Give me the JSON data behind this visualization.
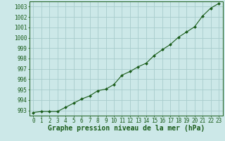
{
  "x": [
    0,
    1,
    2,
    3,
    4,
    5,
    6,
    7,
    8,
    9,
    10,
    11,
    12,
    13,
    14,
    15,
    16,
    17,
    18,
    19,
    20,
    21,
    22,
    23
  ],
  "y": [
    992.8,
    992.9,
    992.9,
    992.9,
    993.3,
    993.7,
    994.1,
    994.4,
    994.9,
    995.05,
    995.5,
    996.4,
    996.75,
    997.2,
    997.55,
    998.3,
    998.85,
    999.35,
    1000.05,
    1000.55,
    1001.05,
    1002.1,
    1002.85,
    1003.3
  ],
  "ylim": [
    992.5,
    1003.5
  ],
  "yticks": [
    993,
    994,
    995,
    996,
    997,
    998,
    999,
    1000,
    1001,
    1002,
    1003
  ],
  "xlim": [
    -0.5,
    23.5
  ],
  "xticks": [
    0,
    1,
    2,
    3,
    4,
    5,
    6,
    7,
    8,
    9,
    10,
    11,
    12,
    13,
    14,
    15,
    16,
    17,
    18,
    19,
    20,
    21,
    22,
    23
  ],
  "xlabel": "Graphe pression niveau de la mer (hPa)",
  "line_color": "#1a5c1a",
  "marker": "D",
  "marker_size": 2.0,
  "bg_color": "#cce8e8",
  "grid_color": "#a8cccc",
  "tick_label_fontsize": 5.5,
  "xlabel_fontsize": 7.0
}
